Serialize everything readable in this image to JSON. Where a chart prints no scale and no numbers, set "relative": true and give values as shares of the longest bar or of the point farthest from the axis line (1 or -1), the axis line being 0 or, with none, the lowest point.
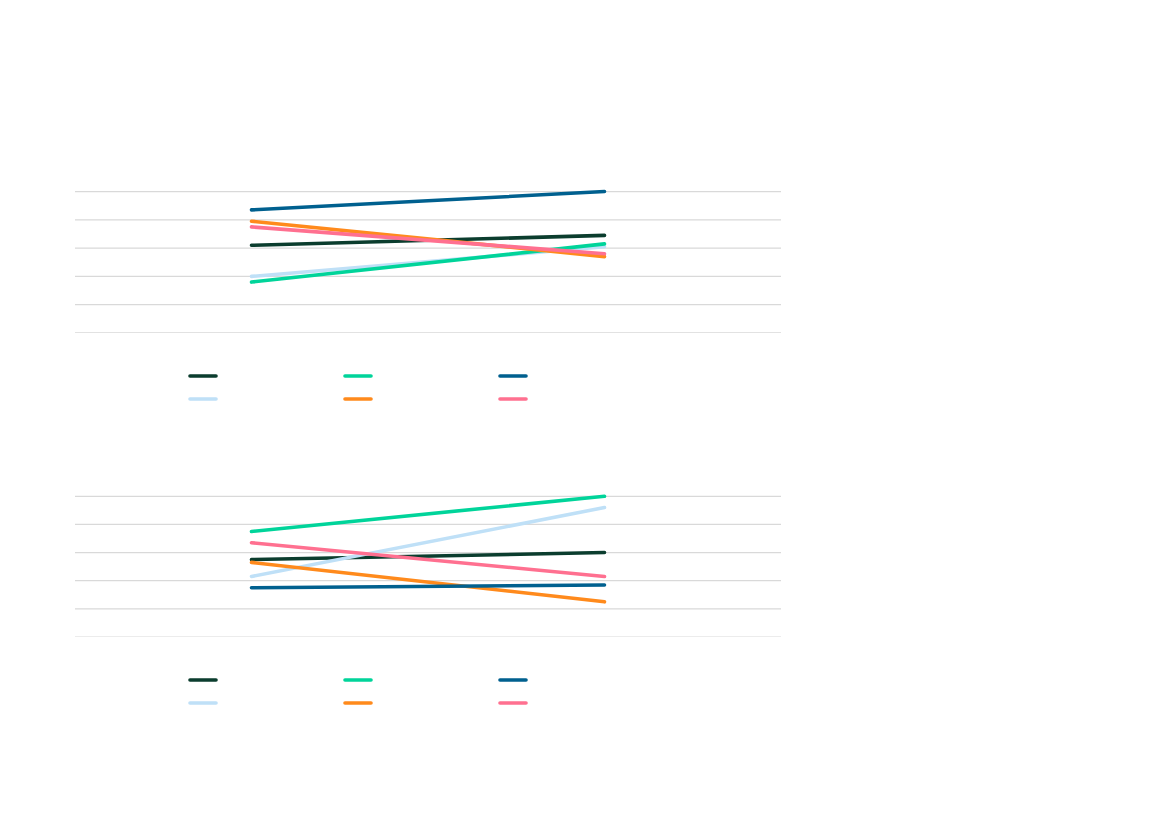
{
  "chart_data": [
    {
      "type": "line",
      "relative": true,
      "categories": [
        null,
        null
      ],
      "grid": "y",
      "tick_labels": false,
      "series": [
        {
          "color": "#0b3d2e",
          "values": [
            0.62,
            0.69
          ]
        },
        {
          "color": "#bfe0f7",
          "values": [
            0.4,
            0.61
          ]
        },
        {
          "color": "#00d49a",
          "values": [
            0.36,
            0.63
          ]
        },
        {
          "color": "#ff8a1c",
          "values": [
            0.79,
            0.54
          ]
        },
        {
          "color": "#00608f",
          "values": [
            0.87,
            1
          ]
        },
        {
          "color": "#ff7090",
          "values": [
            0.75,
            0.56
          ]
        }
      ]
    },
    {
      "type": "line",
      "relative": true,
      "categories": [
        null,
        null
      ],
      "grid": "y",
      "tick_labels": false,
      "series": [
        {
          "color": "#0b3d2e",
          "values": [
            0.55,
            0.6
          ]
        },
        {
          "color": "#bfe0f7",
          "values": [
            0.43,
            0.92
          ]
        },
        {
          "color": "#00d49a",
          "values": [
            0.75,
            1
          ]
        },
        {
          "color": "#ff8a1c",
          "values": [
            0.53,
            0.25
          ]
        },
        {
          "color": "#00608f",
          "values": [
            0.35,
            0.37
          ]
        },
        {
          "color": "#ff7090",
          "values": [
            0.67,
            0.43
          ]
        }
      ]
    }
  ]
}
